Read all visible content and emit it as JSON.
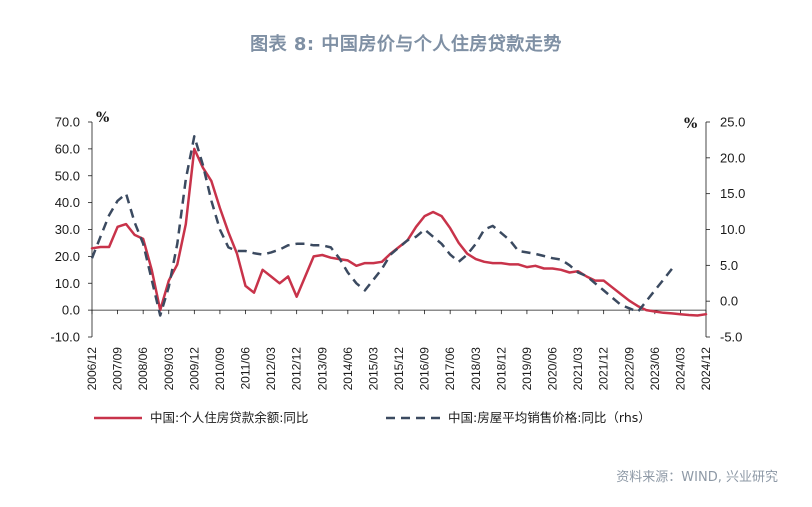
{
  "title": "图表 8:   中国房价与个人住房贷款走势",
  "source": "资料来源：WIND, 兴业研究",
  "chart_data": {
    "type": "line",
    "y_unit": "%",
    "y2_unit": "%",
    "ylim": [
      -10,
      70
    ],
    "y_ticks": [
      70,
      60,
      50,
      40,
      30,
      20,
      10,
      0,
      -10
    ],
    "y_tick_labels": [
      "70.0",
      "60.0",
      "50.0",
      "40.0",
      "30.0",
      "20.0",
      "10.0",
      "0.0",
      "-10.0"
    ],
    "y2lim": [
      -5,
      25
    ],
    "y2_ticks": [
      25,
      20,
      15,
      10,
      5,
      0,
      -5
    ],
    "y2_tick_labels": [
      "25.0",
      "20.0",
      "15.0",
      "10.0",
      "5.0",
      "0.0",
      "-5.0"
    ],
    "x_tick_labels": [
      "2006/12",
      "2007/09",
      "2008/06",
      "2009/03",
      "2009/12",
      "2010/09",
      "2011/06",
      "2012/03",
      "2012/12",
      "2013/09",
      "2014/06",
      "2015/03",
      "2015/12",
      "2016/09",
      "2017/06",
      "2018/03",
      "2018/12",
      "2019/09",
      "2020/06",
      "2021/03",
      "2021/12",
      "2022/09",
      "2023/06",
      "2024/03",
      "2024/12"
    ],
    "series": [
      {
        "name": "中国:个人住房贷款余额:同比",
        "axis": "left",
        "color": "#c8334a",
        "style": "solid",
        "points": [
          [
            "2006/12",
            23.0
          ],
          [
            "2007/03",
            23.5
          ],
          [
            "2007/06",
            23.5
          ],
          [
            "2007/09",
            31.0
          ],
          [
            "2007/12",
            32.0
          ],
          [
            "2008/03",
            28.0
          ],
          [
            "2008/06",
            26.5
          ],
          [
            "2008/09",
            15.0
          ],
          [
            "2008/12",
            0.0
          ],
          [
            "2009/03",
            11.0
          ],
          [
            "2009/06",
            17.0
          ],
          [
            "2009/09",
            32.0
          ],
          [
            "2009/12",
            60.0
          ],
          [
            "2010/03",
            53.0
          ],
          [
            "2010/06",
            48.0
          ],
          [
            "2010/09",
            38.0
          ],
          [
            "2010/12",
            29.0
          ],
          [
            "2011/03",
            21.0
          ],
          [
            "2011/06",
            9.0
          ],
          [
            "2011/09",
            6.5
          ],
          [
            "2011/12",
            15.0
          ],
          [
            "2012/03",
            12.5
          ],
          [
            "2012/06",
            10.0
          ],
          [
            "2012/09",
            12.5
          ],
          [
            "2012/12",
            5.0
          ],
          [
            "2013/03",
            12.5
          ],
          [
            "2013/06",
            20.0
          ],
          [
            "2013/09",
            20.5
          ],
          [
            "2013/12",
            19.5
          ],
          [
            "2014/03",
            19.0
          ],
          [
            "2014/06",
            18.5
          ],
          [
            "2014/09",
            16.5
          ],
          [
            "2014/12",
            17.5
          ],
          [
            "2015/03",
            17.5
          ],
          [
            "2015/06",
            18.0
          ],
          [
            "2015/09",
            21.0
          ],
          [
            "2015/12",
            23.5
          ],
          [
            "2016/03",
            26.0
          ],
          [
            "2016/06",
            31.0
          ],
          [
            "2016/09",
            35.0
          ],
          [
            "2016/12",
            36.5
          ],
          [
            "2017/03",
            35.0
          ],
          [
            "2017/06",
            30.5
          ],
          [
            "2017/09",
            25.0
          ],
          [
            "2017/12",
            21.0
          ],
          [
            "2018/03",
            19.0
          ],
          [
            "2018/06",
            18.0
          ],
          [
            "2018/09",
            17.5
          ],
          [
            "2018/12",
            17.5
          ],
          [
            "2019/03",
            17.0
          ],
          [
            "2019/06",
            17.0
          ],
          [
            "2019/09",
            16.0
          ],
          [
            "2019/12",
            16.5
          ],
          [
            "2020/03",
            15.5
          ],
          [
            "2020/06",
            15.5
          ],
          [
            "2020/09",
            15.0
          ],
          [
            "2020/12",
            14.0
          ],
          [
            "2021/03",
            14.5
          ],
          [
            "2021/06",
            12.5
          ],
          [
            "2021/09",
            11.0
          ],
          [
            "2021/12",
            11.0
          ],
          [
            "2022/03",
            8.5
          ],
          [
            "2022/06",
            6.0
          ],
          [
            "2022/09",
            3.5
          ],
          [
            "2022/12",
            1.5
          ],
          [
            "2023/03",
            0.0
          ],
          [
            "2023/06",
            -0.5
          ],
          [
            "2023/09",
            -1.0
          ],
          [
            "2023/12",
            -1.2
          ],
          [
            "2024/03",
            -1.5
          ],
          [
            "2024/06",
            -1.8
          ],
          [
            "2024/09",
            -2.0
          ],
          [
            "2024/12",
            -1.5
          ]
        ]
      },
      {
        "name": "中国:房屋平均销售价格:同比（rhs）",
        "axis": "right",
        "color": "#3b4a60",
        "style": "dashed",
        "points": [
          [
            "2006/12",
            6.0
          ],
          [
            "2007/03",
            9.0
          ],
          [
            "2007/06",
            12.0
          ],
          [
            "2007/09",
            14.0
          ],
          [
            "2007/12",
            15.0
          ],
          [
            "2008/03",
            11.0
          ],
          [
            "2008/06",
            8.0
          ],
          [
            "2008/09",
            3.0
          ],
          [
            "2008/12",
            -2.0
          ],
          [
            "2009/03",
            2.0
          ],
          [
            "2009/06",
            8.0
          ],
          [
            "2009/09",
            17.0
          ],
          [
            "2009/12",
            23.0
          ],
          [
            "2010/03",
            19.0
          ],
          [
            "2010/06",
            14.0
          ],
          [
            "2010/09",
            10.0
          ],
          [
            "2010/12",
            7.5
          ],
          [
            "2011/03",
            7.0
          ],
          [
            "2011/06",
            7.0
          ],
          [
            "2011/09",
            6.7
          ],
          [
            "2011/12",
            6.5
          ],
          [
            "2012/03",
            6.8
          ],
          [
            "2012/06",
            7.2
          ],
          [
            "2012/09",
            7.8
          ],
          [
            "2012/12",
            8.0
          ],
          [
            "2013/03",
            8.0
          ],
          [
            "2013/06",
            7.8
          ],
          [
            "2013/09",
            7.8
          ],
          [
            "2013/12",
            7.5
          ],
          [
            "2014/03",
            6.0
          ],
          [
            "2014/06",
            4.0
          ],
          [
            "2014/09",
            2.5
          ],
          [
            "2014/12",
            1.5
          ],
          [
            "2015/03",
            3.0
          ],
          [
            "2015/06",
            4.5
          ],
          [
            "2015/09",
            6.5
          ],
          [
            "2015/12",
            7.5
          ],
          [
            "2016/03",
            8.5
          ],
          [
            "2016/06",
            9.0
          ],
          [
            "2016/09",
            10.0
          ],
          [
            "2016/12",
            9.0
          ],
          [
            "2017/03",
            8.0
          ],
          [
            "2017/06",
            6.5
          ],
          [
            "2017/09",
            5.5
          ],
          [
            "2017/12",
            6.5
          ],
          [
            "2018/03",
            8.0
          ],
          [
            "2018/06",
            10.0
          ],
          [
            "2018/09",
            10.5
          ],
          [
            "2018/12",
            9.5
          ],
          [
            "2019/03",
            8.5
          ],
          [
            "2019/06",
            7.0
          ],
          [
            "2019/09",
            6.8
          ],
          [
            "2019/12",
            6.6
          ],
          [
            "2020/03",
            6.3
          ],
          [
            "2020/06",
            6.0
          ],
          [
            "2020/09",
            5.8
          ],
          [
            "2020/12",
            5.0
          ],
          [
            "2021/03",
            4.0
          ],
          [
            "2021/06",
            3.5
          ],
          [
            "2021/09",
            2.5
          ],
          [
            "2021/12",
            1.5
          ],
          [
            "2022/03",
            0.5
          ],
          [
            "2022/06",
            -0.5
          ],
          [
            "2022/09",
            -1.0
          ],
          [
            "2022/12",
            -1.5
          ],
          [
            "2023/03",
            0.0
          ],
          [
            "2023/06",
            1.5
          ],
          [
            "2023/09",
            3.0
          ],
          [
            "2023/12",
            4.5
          ]
        ]
      }
    ]
  }
}
